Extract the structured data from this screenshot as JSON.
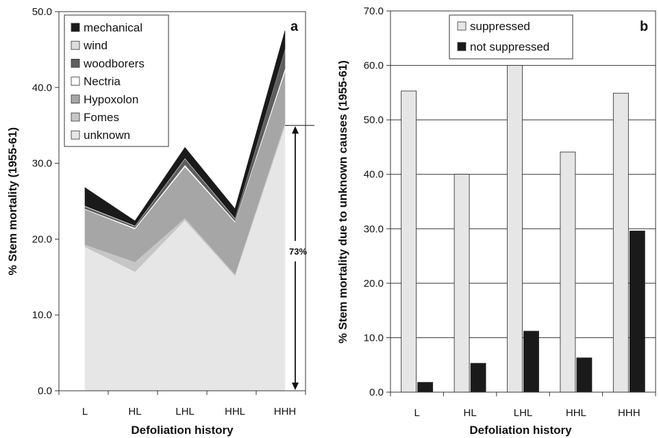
{
  "chart_data": [
    {
      "panel_label": "a",
      "type": "area",
      "stacked": true,
      "ylabel": "% Stem mortality (1955-61)",
      "xlabel": "Defoliation history",
      "categories": [
        "L",
        "HL",
        "LHL",
        "HHL",
        "HHH"
      ],
      "ylim": [
        0,
        50
      ],
      "yticks": [
        "0.0",
        "10.0",
        "20.0",
        "30.0",
        "40.0",
        "50.0"
      ],
      "legend_position": "top-left",
      "series": [
        {
          "name": "unknown",
          "color": "#e6e6e6",
          "values": [
            19.0,
            15.7,
            22.5,
            15.2,
            35.0
          ]
        },
        {
          "name": "Fomes",
          "color": "#c6c6c6",
          "values": [
            0.3,
            1.3,
            0.3,
            0.2,
            0.4
          ]
        },
        {
          "name": "Hypoxolon",
          "color": "#a6a6a6",
          "values": [
            4.6,
            4.3,
            6.7,
            6.8,
            6.6
          ]
        },
        {
          "name": "Nectria",
          "color": "#ffffff",
          "values": [
            0.1,
            0.2,
            0.3,
            0.2,
            0.5
          ]
        },
        {
          "name": "woodborers",
          "color": "#5e5e5e",
          "values": [
            0.3,
            0.2,
            0.8,
            0.3,
            2.5
          ]
        },
        {
          "name": "wind",
          "color": "#dddddd",
          "values": [
            0.1,
            0.1,
            0.1,
            0.1,
            0.1
          ]
        },
        {
          "name": "mechanical",
          "color": "#1a1a1a",
          "values": [
            2.4,
            0.6,
            1.4,
            1.2,
            2.4
          ]
        }
      ],
      "annotation": {
        "label": "73%",
        "from": 0,
        "to": 35.0
      }
    },
    {
      "panel_label": "b",
      "type": "bar",
      "ylabel": "% Stem mortality due to unknown causes (1955-61)",
      "xlabel": "Defoliation history",
      "categories": [
        "L",
        "HL",
        "LHL",
        "HHL",
        "HHH"
      ],
      "ylim": [
        0,
        70
      ],
      "yticks": [
        "0.0",
        "10.0",
        "20.0",
        "30.0",
        "40.0",
        "50.0",
        "60.0",
        "70.0"
      ],
      "grid": true,
      "legend_position": "top",
      "series": [
        {
          "name": "suppressed",
          "color": "#e6e6e6",
          "values": [
            55.3,
            40.0,
            60.0,
            44.1,
            54.9
          ]
        },
        {
          "name": "not suppressed",
          "color": "#1a1a1a",
          "values": [
            1.8,
            5.3,
            11.2,
            6.3,
            29.6
          ]
        }
      ]
    }
  ]
}
